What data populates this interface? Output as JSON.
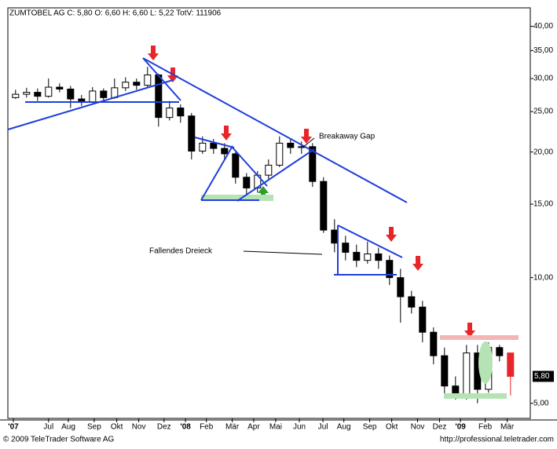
{
  "chart_data": {
    "type": "candlestick",
    "title": "ZUMTOBEL AG C: 5,80 O: 6,60 H: 6,60 L: 5,22 TotV: 111906",
    "x": [
      0,
      2,
      4,
      6,
      8,
      10,
      12,
      14,
      16,
      18,
      20,
      22,
      24,
      26,
      28,
      30,
      32,
      34,
      36,
      38,
      40,
      42,
      44,
      46,
      48,
      50,
      52,
      54,
      56,
      58,
      60,
      62,
      64,
      66,
      68,
      70,
      72,
      74,
      76,
      78,
      80,
      82,
      84,
      86,
      88,
      90
    ],
    "open": [
      27.0,
      27.5,
      27.8,
      27.2,
      28.6,
      28.3,
      26.8,
      26.4,
      28.0,
      27.0,
      28.5,
      29.4,
      28.9,
      30.6,
      24.2,
      25.5,
      24.4,
      20.1,
      21.0,
      20.4,
      19.8,
      17.4,
      16.4,
      17.6,
      18.6,
      21.0,
      20.5,
      20.6,
      17.0,
      13.0,
      12.1,
      11.5,
      11.0,
      11.4,
      11.0,
      10.0,
      9.0,
      8.5,
      7.4,
      6.5,
      5.5,
      5.2,
      6.6,
      5.4,
      6.8,
      6.6
    ],
    "high": [
      28.2,
      28.5,
      28.4,
      30.0,
      29.2,
      28.8,
      27.4,
      28.6,
      28.4,
      30.0,
      30.2,
      30.0,
      32.0,
      30.8,
      26.5,
      26.0,
      24.8,
      21.8,
      21.5,
      21.0,
      20.0,
      17.8,
      18.0,
      19.2,
      21.8,
      21.5,
      21.2,
      21.0,
      17.4,
      13.8,
      12.6,
      12.0,
      12.2,
      11.8,
      11.3,
      10.5,
      9.3,
      8.8,
      7.6,
      6.8,
      5.8,
      6.9,
      6.9,
      7.0,
      6.9,
      6.6
    ],
    "low": [
      26.8,
      27.0,
      26.5,
      27.0,
      27.8,
      25.5,
      25.8,
      26.2,
      26.6,
      26.8,
      28.0,
      28.2,
      28.5,
      23.0,
      23.8,
      23.5,
      19.2,
      19.8,
      19.8,
      19.2,
      16.8,
      15.5,
      16.0,
      17.2,
      18.4,
      19.8,
      19.8,
      16.5,
      12.8,
      11.5,
      11.0,
      10.6,
      10.8,
      10.5,
      9.6,
      7.8,
      8.2,
      7.0,
      6.2,
      5.2,
      5.1,
      5.1,
      5.0,
      5.3,
      6.3,
      5.22
    ],
    "close": [
      27.5,
      27.8,
      27.2,
      28.6,
      28.3,
      26.8,
      26.4,
      28.0,
      27.0,
      28.5,
      29.4,
      28.9,
      30.6,
      24.2,
      25.5,
      24.4,
      20.1,
      21.0,
      20.4,
      19.8,
      17.4,
      16.4,
      17.6,
      18.6,
      21.0,
      20.5,
      20.6,
      17.0,
      13.0,
      12.1,
      11.5,
      11.0,
      11.4,
      11.0,
      10.0,
      9.0,
      8.5,
      7.4,
      6.5,
      5.5,
      5.2,
      6.6,
      5.4,
      6.8,
      6.5,
      5.8
    ],
    "xlim": [
      -1.4,
      93.6
    ],
    "xticks": [
      {
        "value": -0.4,
        "label": "'07"
      },
      {
        "value": 6,
        "label": "Jul"
      },
      {
        "value": 9.6,
        "label": "Aug"
      },
      {
        "value": 14.3,
        "label": "Sep"
      },
      {
        "value": 18.4,
        "label": "Okt"
      },
      {
        "value": 22.4,
        "label": "Nov"
      },
      {
        "value": 27,
        "label": "Dez"
      },
      {
        "value": 30.9,
        "label": "'08"
      },
      {
        "value": 34.7,
        "label": "Feb"
      },
      {
        "value": 39.4,
        "label": "Mär"
      },
      {
        "value": 43.3,
        "label": "Apr"
      },
      {
        "value": 47.3,
        "label": "Mai"
      },
      {
        "value": 51.6,
        "label": "Jun"
      },
      {
        "value": 55.9,
        "label": "Jul"
      },
      {
        "value": 59.7,
        "label": "Aug"
      },
      {
        "value": 64.4,
        "label": "Sep"
      },
      {
        "value": 68.4,
        "label": "Okt"
      },
      {
        "value": 73.1,
        "label": "Nov"
      },
      {
        "value": 77.1,
        "label": "Dez"
      },
      {
        "value": 80.9,
        "label": "'09"
      },
      {
        "value": 85.4,
        "label": "Feb"
      },
      {
        "value": 89.4,
        "label": "Mär"
      }
    ],
    "ylim": [
      4.6,
      44.3
    ],
    "log_scale": true,
    "yticks": [
      {
        "value": 40,
        "label": "40,00"
      },
      {
        "value": 35,
        "label": "35,00"
      },
      {
        "value": 30,
        "label": "30,00"
      },
      {
        "value": 25,
        "label": "25,00"
      },
      {
        "value": 20,
        "label": "20,00"
      },
      {
        "value": 15,
        "label": "15,00"
      },
      {
        "value": 10,
        "label": "10,00"
      },
      {
        "value": 5,
        "label": "5,00"
      }
    ],
    "last_price": {
      "value": 5.8,
      "label": "5,80"
    },
    "up_color": "#ffffff",
    "down_color": "#000000",
    "last_color": "#e8262a",
    "annotations": [
      "Breakaway Gap",
      "Fallendes Dreieck"
    ],
    "footer_left": "© 2009 TeleTrader Software AG",
    "footer_right": "http://professional.teletrader.com"
  }
}
